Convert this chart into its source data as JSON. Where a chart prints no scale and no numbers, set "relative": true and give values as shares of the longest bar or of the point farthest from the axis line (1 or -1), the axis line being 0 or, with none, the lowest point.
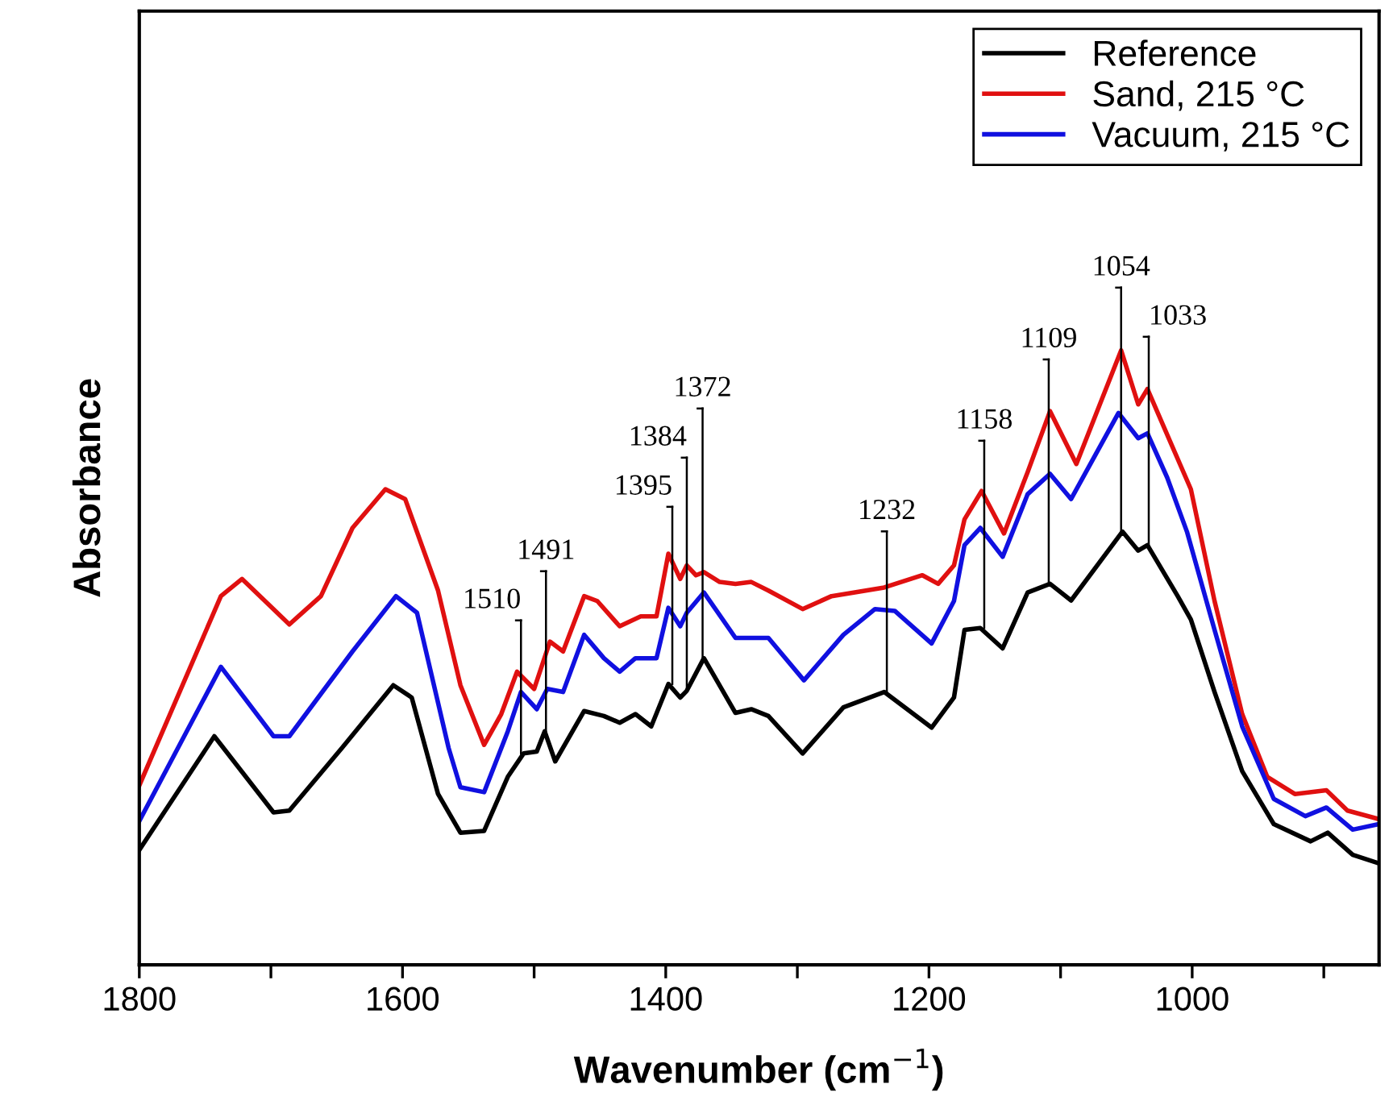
{
  "chart_data": {
    "type": "line",
    "relative": true,
    "xlabel": "Wavenumber (cm$^{−1}$)",
    "ylabel": "Absorbance",
    "xlim": [
      1800,
      858
    ],
    "xticks": [
      1800,
      {
        "value": 1700,
        "label": null
      },
      1600,
      {
        "value": 1500,
        "label": null
      },
      1400,
      {
        "value": 1300,
        "label": null
      },
      1200,
      {
        "value": 1100,
        "label": null
      },
      1000,
      {
        "value": 900,
        "label": null
      }
    ],
    "tick_labels": "x",
    "grid": false,
    "legend": "top right",
    "line_style": "solid",
    "marker": "none",
    "series": [
      {
        "name": "Reference",
        "color": "#000000",
        "x": [
          1800,
          1743,
          1698,
          1686,
          1646,
          1607,
          1593,
          1573,
          1556,
          1538,
          1520,
          1508,
          1498,
          1492,
          1484,
          1462,
          1447,
          1435,
          1423,
          1411,
          1398,
          1389,
          1384,
          1371,
          1347,
          1335,
          1322,
          1296,
          1265,
          1234,
          1198,
          1181,
          1173,
          1161,
          1144,
          1125,
          1108,
          1092,
          1053,
          1041,
          1034,
          1011,
          1001,
          983,
          962,
          938,
          910,
          897,
          878,
          858
        ],
        "values": [
          0.187,
          0.372,
          0.248,
          0.251,
          0.353,
          0.455,
          0.435,
          0.278,
          0.215,
          0.218,
          0.306,
          0.344,
          0.347,
          0.38,
          0.331,
          0.413,
          0.405,
          0.394,
          0.408,
          0.388,
          0.457,
          0.435,
          0.446,
          0.499,
          0.41,
          0.416,
          0.405,
          0.344,
          0.419,
          0.444,
          0.386,
          0.435,
          0.545,
          0.548,
          0.515,
          0.606,
          0.62,
          0.593,
          0.705,
          0.674,
          0.683,
          0.6,
          0.562,
          0.444,
          0.315,
          0.229,
          0.201,
          0.215,
          0.179,
          0.165
        ]
      },
      {
        "name": "Sand, 215 °C",
        "color": "#e01010",
        "x": [
          1800,
          1738,
          1722,
          1686,
          1662,
          1638,
          1613,
          1598,
          1573,
          1556,
          1538,
          1525,
          1513,
          1500,
          1488,
          1478,
          1462,
          1452,
          1435,
          1419,
          1407,
          1398,
          1389,
          1384,
          1377,
          1371,
          1359,
          1347,
          1335,
          1322,
          1296,
          1274,
          1234,
          1205,
          1193,
          1181,
          1173,
          1160,
          1143,
          1125,
          1108,
          1088,
          1054,
          1041,
          1034,
          1016,
          1001,
          983,
          962,
          943,
          922,
          898,
          882,
          858
        ],
        "values": [
          0.292,
          0.6,
          0.628,
          0.554,
          0.6,
          0.711,
          0.774,
          0.758,
          0.609,
          0.455,
          0.358,
          0.408,
          0.477,
          0.449,
          0.526,
          0.51,
          0.6,
          0.592,
          0.551,
          0.567,
          0.567,
          0.669,
          0.628,
          0.65,
          0.634,
          0.639,
          0.623,
          0.62,
          0.623,
          0.609,
          0.579,
          0.6,
          0.614,
          0.634,
          0.62,
          0.65,
          0.725,
          0.771,
          0.702,
          0.802,
          0.901,
          0.815,
          1.0,
          0.912,
          0.937,
          0.848,
          0.774,
          0.592,
          0.408,
          0.306,
          0.278,
          0.284,
          0.251,
          0.237
        ]
      },
      {
        "name": "Vacuum, 215 °C",
        "color": "#1010e0",
        "x": [
          1800,
          1738,
          1698,
          1686,
          1638,
          1605,
          1589,
          1565,
          1556,
          1538,
          1520,
          1510,
          1498,
          1490,
          1478,
          1462,
          1447,
          1435,
          1423,
          1407,
          1398,
          1389,
          1384,
          1371,
          1347,
          1322,
          1295,
          1265,
          1241,
          1226,
          1198,
          1181,
          1173,
          1161,
          1144,
          1125,
          1108,
          1092,
          1056,
          1041,
          1034,
          1019,
          1004,
          983,
          962,
          938,
          914,
          898,
          878,
          858
        ],
        "values": [
          0.234,
          0.485,
          0.372,
          0.372,
          0.51,
          0.6,
          0.573,
          0.353,
          0.289,
          0.281,
          0.38,
          0.444,
          0.416,
          0.449,
          0.444,
          0.537,
          0.499,
          0.477,
          0.499,
          0.499,
          0.581,
          0.551,
          0.573,
          0.606,
          0.532,
          0.532,
          0.463,
          0.537,
          0.579,
          0.576,
          0.523,
          0.592,
          0.683,
          0.711,
          0.664,
          0.766,
          0.799,
          0.758,
          0.898,
          0.857,
          0.865,
          0.793,
          0.705,
          0.545,
          0.388,
          0.27,
          0.242,
          0.256,
          0.22,
          0.229
        ]
      }
    ],
    "annotations": [
      {
        "text": "1510",
        "x": 1510,
        "y": 0.344
      },
      {
        "text": "1491",
        "x": 1491,
        "y": 0.38
      },
      {
        "text": "1395",
        "x": 1395,
        "y": 0.457
      },
      {
        "text": "1384",
        "x": 1384,
        "y": 0.446
      },
      {
        "text": "1372",
        "x": 1372,
        "y": 0.499
      },
      {
        "text": "1232",
        "x": 1232,
        "y": 0.444
      },
      {
        "text": "1158",
        "x": 1158,
        "y": 0.548
      },
      {
        "text": "1109",
        "x": 1109,
        "y": 0.62
      },
      {
        "text": "1033",
        "x": 1033,
        "y": 0.683
      },
      {
        "text": "1054",
        "x": 1054,
        "y": 0.705
      }
    ]
  }
}
